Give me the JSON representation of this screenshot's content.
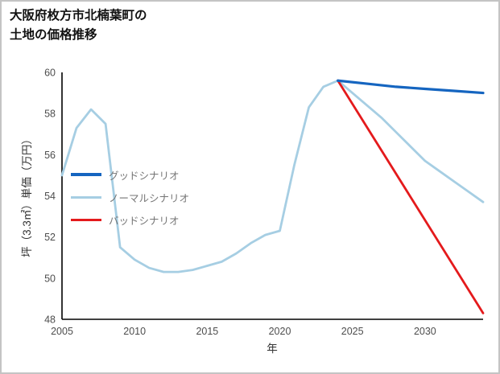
{
  "chart_data": {
    "type": "line",
    "title": "大阪府枚方市北楠葉町の\n土地の価格推移",
    "xlabel": "年",
    "ylabel": "坪（3.3㎡）単価（万円）",
    "xlim": [
      2005,
      2034
    ],
    "ylim": [
      48,
      60
    ],
    "xticks": [
      2005,
      2010,
      2015,
      2020,
      2025,
      2030
    ],
    "yticks": [
      48,
      50,
      52,
      54,
      56,
      58,
      60
    ],
    "grid": false,
    "legend_position": "middle-left",
    "colors": {
      "axis": "#000000",
      "tick_label": "#4d4d4d",
      "legend_text": "#757575",
      "background": "#ffffff",
      "border": "#c4c4c4"
    },
    "series": [
      {
        "id": "good",
        "name": "グッドシナリオ",
        "color": "#1565c0",
        "width": 3.2,
        "z": 3,
        "x": [
          2024,
          2026,
          2028,
          2030,
          2032,
          2034
        ],
        "y": [
          59.6,
          59.45,
          59.3,
          59.2,
          59.1,
          59.0
        ]
      },
      {
        "id": "normal",
        "name": "ノーマルシナリオ",
        "color": "#a6cee3",
        "width": 2.8,
        "z": 1,
        "x": [
          2005,
          2006,
          2007,
          2008,
          2009,
          2010,
          2011,
          2012,
          2013,
          2014,
          2015,
          2016,
          2017,
          2018,
          2019,
          2020,
          2021,
          2022,
          2023,
          2024,
          2025,
          2026,
          2027,
          2028,
          2029,
          2030,
          2031,
          2032,
          2033,
          2034
        ],
        "y": [
          55.0,
          57.3,
          58.2,
          57.5,
          51.5,
          50.9,
          50.5,
          50.3,
          50.3,
          50.4,
          50.6,
          50.8,
          51.2,
          51.7,
          52.1,
          52.3,
          55.5,
          58.3,
          59.3,
          59.6,
          59.0,
          58.4,
          57.8,
          57.1,
          56.4,
          55.7,
          55.2,
          54.7,
          54.2,
          53.7
        ]
      },
      {
        "id": "bad",
        "name": "バッドシナリオ",
        "color": "#e41a1c",
        "width": 2.8,
        "z": 2,
        "x": [
          2024,
          2034
        ],
        "y": [
          59.6,
          48.3
        ]
      }
    ]
  }
}
